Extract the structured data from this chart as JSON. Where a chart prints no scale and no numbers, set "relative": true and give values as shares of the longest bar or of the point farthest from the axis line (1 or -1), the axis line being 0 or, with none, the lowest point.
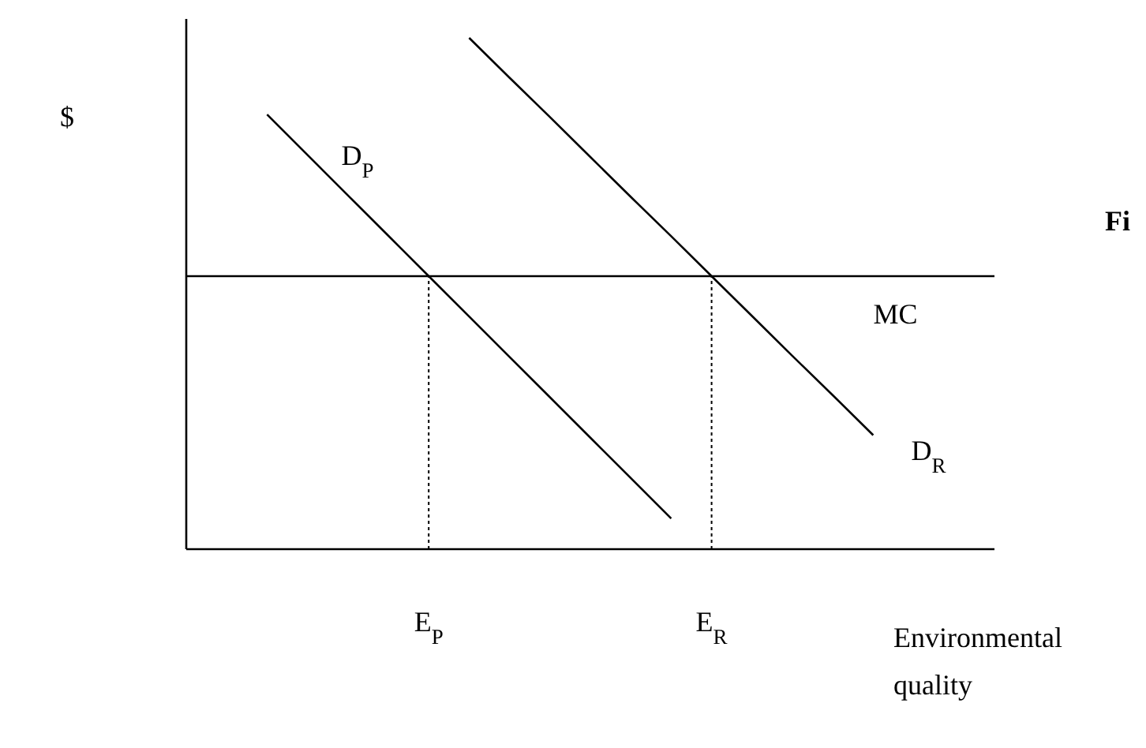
{
  "chart_data": {
    "type": "line",
    "relative": true,
    "ylabel": "$",
    "xlabel": "Environmental quality",
    "categories": [
      null,
      null,
      null,
      null,
      null,
      null,
      "E$_{P}$",
      null,
      null,
      null,
      null,
      null,
      null,
      "E$_{R}$",
      null,
      null,
      null,
      null,
      null,
      null,
      null
    ],
    "series": [
      {
        "name": "D$_{P}$",
        "color": "#000000",
        "values": [
          null,
          null,
          0.85,
          0.771,
          0.692,
          0.613,
          0.534,
          0.455,
          0.376,
          0.297,
          0.218,
          0.139,
          0.06,
          null,
          null,
          null,
          null,
          null,
          null,
          null,
          null
        ]
      },
      {
        "name": "D$_{R}$",
        "color": "#000000",
        "values": [
          null,
          null,
          null,
          null,
          null,
          null,
          null,
          1.0,
          0.922,
          0.845,
          0.767,
          0.689,
          0.612,
          0.534,
          0.456,
          0.378,
          0.301,
          0.223,
          null,
          null,
          null
        ]
      },
      {
        "name": "MC",
        "color": "#000000",
        "values": [
          0.534,
          0.534,
          0.534,
          0.534,
          0.534,
          0.534,
          0.534,
          0.534,
          0.534,
          0.534,
          0.534,
          0.534,
          0.534,
          0.534,
          0.534,
          0.534,
          0.534,
          0.534,
          0.534,
          0.534,
          0.534
        ]
      }
    ],
    "ref_lines": [
      {
        "axis": "x",
        "value": "E$_{P}$",
        "line_style": "dotted"
      },
      {
        "axis": "x",
        "value": "E$_{R}$",
        "line_style": "dotted"
      }
    ],
    "annotations": [
      "Fi"
    ],
    "line_style": "solid",
    "marker": "none"
  }
}
